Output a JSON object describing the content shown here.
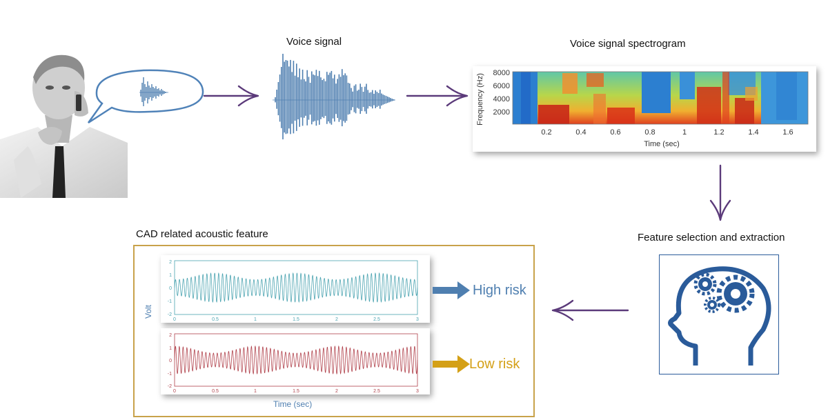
{
  "labels": {
    "voice_signal": "Voice signal",
    "spectrogram_title": "Voice signal spectrogram",
    "feature_selection": "Feature selection and extraction",
    "cad_feature": "CAD related acoustic feature",
    "high_risk": "High risk",
    "low_risk": "Low risk"
  },
  "spectrogram": {
    "y_label": "Frequency (Hz)",
    "x_label": "Time (sec)",
    "y_ticks": [
      "8000",
      "6000",
      "4000",
      "2000"
    ],
    "x_ticks": [
      "0.2",
      "0.4",
      "0.6",
      "0.8",
      "1",
      "1.2",
      "1.4",
      "1.6"
    ]
  },
  "waveform_plots": {
    "y_label": "Volt",
    "x_label": "Time (sec)",
    "x_ticks": [
      "0",
      "0.5",
      "1",
      "1.5",
      "2",
      "2.5",
      "3"
    ],
    "y_ticks": [
      "2",
      "1",
      "0",
      "-1",
      "-2"
    ]
  },
  "colors": {
    "arrow": "#5b3a7a",
    "high_risk": "#4f7fb0",
    "low_risk": "#d4a017",
    "frame": "#c8a24a",
    "head_icon": "#2a5b9a",
    "top_wave": "#4aa3b0",
    "bottom_wave": "#b0404a"
  }
}
